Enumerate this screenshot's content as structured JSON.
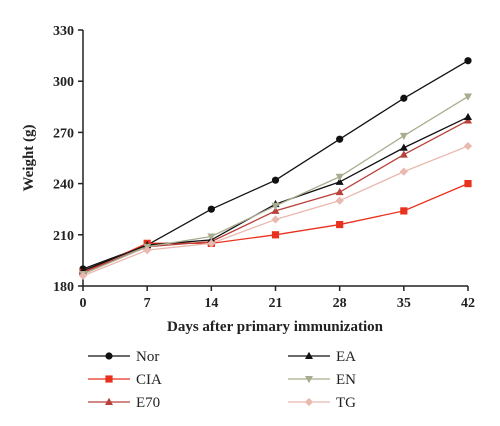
{
  "chart_data": {
    "type": "line",
    "xlabel": "Days after primary immunization",
    "ylabel": "Weight (g)",
    "x": [
      0,
      7,
      14,
      21,
      28,
      35,
      42
    ],
    "xticks": [
      "0",
      "7",
      "14",
      "21",
      "28",
      "35",
      "42"
    ],
    "yticks": [
      "180",
      "210",
      "240",
      "270",
      "300",
      "330"
    ],
    "xlim": [
      0,
      42
    ],
    "ylim": [
      180,
      330
    ],
    "grid": false,
    "legend_position": "bottom",
    "series": [
      {
        "name": "Nor",
        "color": "#111111",
        "marker": "circle",
        "values": [
          190,
          204,
          225,
          242,
          266,
          290,
          312
        ]
      },
      {
        "name": "CIA",
        "color": "#e8321e",
        "marker": "square",
        "values": [
          188,
          205,
          205,
          210,
          216,
          224,
          240
        ]
      },
      {
        "name": "E70",
        "color": "#b8413a",
        "marker": "triangle",
        "values": [
          188,
          203,
          206,
          224,
          235,
          257,
          277
        ]
      },
      {
        "name": "EA",
        "color": "#111111",
        "marker": "triangle",
        "values": [
          189,
          204,
          207,
          228,
          241,
          261,
          279
        ]
      },
      {
        "name": "EN",
        "color": "#a9ad8f",
        "marker": "triangle-down",
        "values": [
          187,
          203,
          209,
          227,
          244,
          268,
          291
        ]
      },
      {
        "name": "TG",
        "color": "#e9b8ae",
        "marker": "diamond",
        "values": [
          186,
          201,
          205,
          219,
          230,
          247,
          262
        ]
      }
    ]
  }
}
